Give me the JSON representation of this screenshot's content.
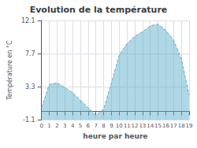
{
  "chart_data": {
    "type": "area",
    "title": "Evolution de la température",
    "xlabel": "heure par heure",
    "ylabel": "Température en °C",
    "x": [
      0,
      1,
      2,
      3,
      4,
      5,
      6,
      7,
      8,
      9,
      10,
      11,
      12,
      13,
      14,
      15,
      16,
      17,
      18,
      19
    ],
    "values": [
      0.5,
      3.6,
      3.8,
      3.2,
      2.5,
      1.5,
      0.5,
      -0.5,
      0.3,
      3.8,
      7.5,
      9.0,
      10.0,
      10.6,
      11.4,
      11.6,
      10.8,
      9.5,
      7.0,
      2.2
    ],
    "xlim": [
      0,
      19
    ],
    "xticks": [
      0,
      1,
      2,
      3,
      4,
      5,
      6,
      7,
      8,
      9,
      10,
      11,
      12,
      13,
      14,
      15,
      16,
      17,
      18,
      19
    ],
    "ylim": [
      -1.1,
      12.1
    ],
    "yticks": [
      -1.1,
      3.3,
      7.7,
      12.1
    ],
    "grid": true,
    "color": "#60b0cc",
    "line_style": "dashed"
  }
}
